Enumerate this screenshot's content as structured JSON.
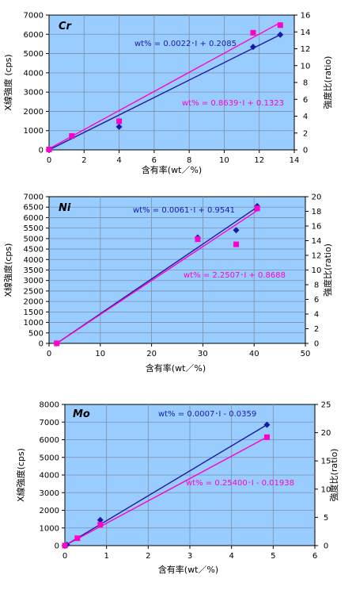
{
  "chart_data": [
    {
      "type": "scatter",
      "element": "Cr",
      "xlabel": "含有率(wt／%)",
      "ylabel_left": "X線強度 (cps)",
      "ylabel_right": "強度比(ratio)",
      "xlim": [
        0,
        14
      ],
      "xticks": [
        0,
        2,
        4,
        6,
        8,
        10,
        12,
        14
      ],
      "ylim_left": [
        0,
        7000
      ],
      "yticks_left": [
        0,
        1000,
        2000,
        3000,
        4000,
        5000,
        6000,
        7000
      ],
      "ylim_right": [
        0,
        16
      ],
      "yticks_right": [
        0,
        2,
        4,
        6,
        8,
        10,
        12,
        14,
        16
      ],
      "series": [
        {
          "axis": "left",
          "color": "#1a1aa6",
          "marker": "diamond",
          "x": [
            0,
            4.0,
            11.65,
            13.2
          ],
          "y": [
            0,
            1200,
            5350,
            5980
          ]
        },
        {
          "axis": "right",
          "color": "#ff00cc",
          "marker": "square",
          "x": [
            0,
            1.3,
            4.0,
            11.65,
            13.2
          ],
          "y": [
            0.05,
            1.65,
            3.4,
            13.9,
            14.8
          ]
        }
      ],
      "fits": [
        {
          "axis": "left",
          "color": "#1a1aa6",
          "x": [
            0,
            13.2
          ],
          "y": [
            0,
            5980
          ]
        },
        {
          "axis": "right",
          "color": "#ff00cc",
          "x": [
            0,
            13.2
          ],
          "y": [
            0.13,
            15.1
          ]
        }
      ],
      "equations": [
        {
          "text": "wt% = 0.0022･I + 0.2085",
          "color": "#1a1aa6",
          "pos": "upper"
        },
        {
          "text": "wt% = 0.8639･I + 0.1323",
          "color": "#ff00cc",
          "pos": "lower"
        }
      ]
    },
    {
      "type": "scatter",
      "element": "Ni",
      "xlabel": "含有率(wt／%)",
      "ylabel_left": "X線強度(cps)",
      "ylabel_right": "強度比(ratio)",
      "xlim": [
        0,
        50
      ],
      "xticks": [
        0,
        10,
        20,
        30,
        40,
        50
      ],
      "ylim_left": [
        0,
        7000
      ],
      "yticks_left": [
        0,
        500,
        1000,
        1500,
        2000,
        2500,
        3000,
        3500,
        4000,
        4500,
        5000,
        5500,
        6000,
        6500,
        7000
      ],
      "ylim_right": [
        0,
        20
      ],
      "yticks_right": [
        0,
        2,
        4,
        6,
        8,
        10,
        12,
        14,
        16,
        18,
        20
      ],
      "series": [
        {
          "axis": "left",
          "color": "#1a1aa6",
          "marker": "diamond",
          "x": [
            1.5,
            29.0,
            36.5,
            40.6
          ],
          "y": [
            0,
            5050,
            5400,
            6550
          ]
        },
        {
          "axis": "right",
          "color": "#ff00cc",
          "marker": "square",
          "x": [
            1.5,
            29.0,
            36.5,
            40.6
          ],
          "y": [
            0,
            14.2,
            13.5,
            18.4
          ]
        }
      ],
      "fits": [
        {
          "axis": "left",
          "color": "#1a1aa6",
          "x": [
            1.5,
            40.6
          ],
          "y": [
            0,
            6500
          ]
        },
        {
          "axis": "right",
          "color": "#ff00cc",
          "x": [
            1.5,
            40.6
          ],
          "y": [
            0,
            18.1
          ]
        }
      ],
      "equations": [
        {
          "text": "wt% = 0.0061･I + 0.9541",
          "color": "#1a1aa6",
          "pos": "upper"
        },
        {
          "text": "wt% = 2.2507･I + 0.8688",
          "color": "#ff00cc",
          "pos": "lower"
        }
      ]
    },
    {
      "type": "scatter",
      "element": "Mo",
      "xlabel": "含有率(wt／%)",
      "ylabel_left": "X線強度(cps)",
      "ylabel_right": "強度比(ratio)",
      "xlim": [
        0,
        6
      ],
      "xticks": [
        0,
        1,
        2,
        3,
        4,
        5,
        6
      ],
      "ylim_left": [
        0,
        8000
      ],
      "yticks_left": [
        0,
        1000,
        2000,
        3000,
        4000,
        5000,
        6000,
        7000,
        8000
      ],
      "ylim_right": [
        0,
        25
      ],
      "yticks_right": [
        0,
        5,
        10,
        15,
        20,
        25
      ],
      "series": [
        {
          "axis": "left",
          "color": "#1a1aa6",
          "marker": "diamond",
          "x": [
            0,
            0.05,
            0.85,
            4.85
          ],
          "y": [
            0,
            50,
            1450,
            6850
          ]
        },
        {
          "axis": "right",
          "color": "#ff00cc",
          "marker": "square",
          "x": [
            0,
            0.3,
            0.85,
            4.85
          ],
          "y": [
            0,
            1.3,
            3.7,
            19.2
          ]
        }
      ],
      "fits": [
        {
          "axis": "left",
          "color": "#1a1aa6",
          "x": [
            0,
            4.85
          ],
          "y": [
            0,
            6850
          ]
        },
        {
          "axis": "right",
          "color": "#ff00cc",
          "x": [
            0,
            4.85
          ],
          "y": [
            0,
            19.2
          ]
        }
      ],
      "equations": [
        {
          "text": "wt% = 0.0007･I - 0.0359",
          "color": "#1a1aa6",
          "pos": "upper"
        },
        {
          "text": "wt% = 0.25400･I - 0.01938",
          "color": "#ff00cc",
          "pos": "lower"
        }
      ]
    }
  ],
  "style": {
    "plot_bg": "#99ccff",
    "grid_color": "#7f8fa6",
    "axis_color": "#000000"
  }
}
